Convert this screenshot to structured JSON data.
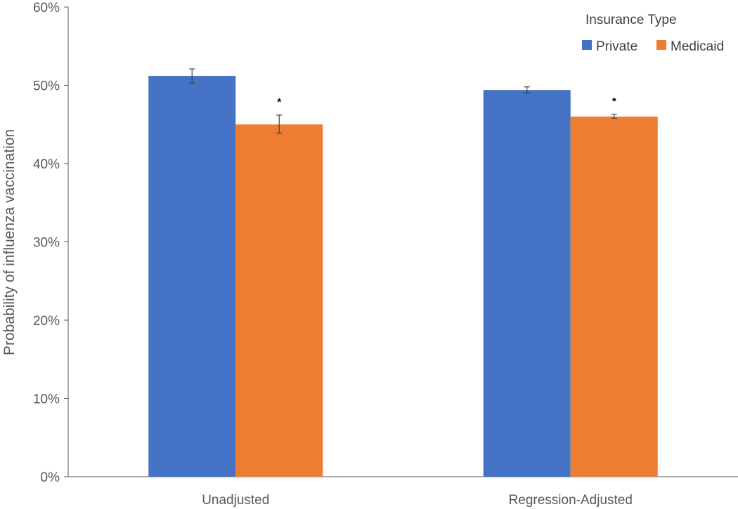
{
  "chart_data": {
    "type": "bar",
    "ylabel": "Probability of influenza vaccination",
    "xlabel": "",
    "ylim": [
      0,
      0.6
    ],
    "y_ticks": [
      0,
      0.1,
      0.2,
      0.3,
      0.4,
      0.5,
      0.6
    ],
    "y_tick_labels": [
      "0%",
      "10%",
      "20%",
      "30%",
      "40%",
      "50%",
      "60%"
    ],
    "categories": [
      "Unadjusted",
      "Regression-Adjusted"
    ],
    "legend_title": "Insurance Type",
    "legend_position": "top-right",
    "grid": false,
    "series": [
      {
        "name": "Private",
        "color": "#4472C4",
        "values": [
          0.512,
          0.494
        ],
        "error_low": [
          0.503,
          0.49
        ],
        "error_high": [
          0.521,
          0.498
        ]
      },
      {
        "name": "Medicaid",
        "color": "#ED7D31",
        "values": [
          0.45,
          0.46
        ],
        "error_low": [
          0.439,
          0.458
        ],
        "error_high": [
          0.462,
          0.463
        ]
      }
    ],
    "annotations": [
      {
        "series": 1,
        "category": 0,
        "text": "*"
      },
      {
        "series": 1,
        "category": 1,
        "text": "*"
      }
    ]
  }
}
